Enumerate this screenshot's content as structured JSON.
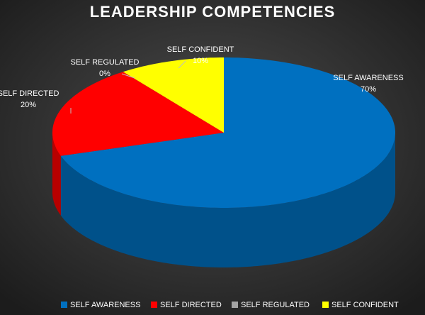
{
  "chart_data": {
    "type": "pie",
    "title": "LEADERSHIP COMPETENCIES",
    "categories": [
      "SELF AWARENESS",
      "SELF DIRECTED",
      "SELF REGULATED",
      "SELF CONFIDENT"
    ],
    "values": [
      70,
      20,
      0,
      10
    ],
    "value_labels": [
      "70%",
      "20%",
      "0%",
      "10%"
    ],
    "colors": [
      "#0070c0",
      "#ff0000",
      "#a5a5a5",
      "#ffff00"
    ],
    "legend": "bottom"
  }
}
